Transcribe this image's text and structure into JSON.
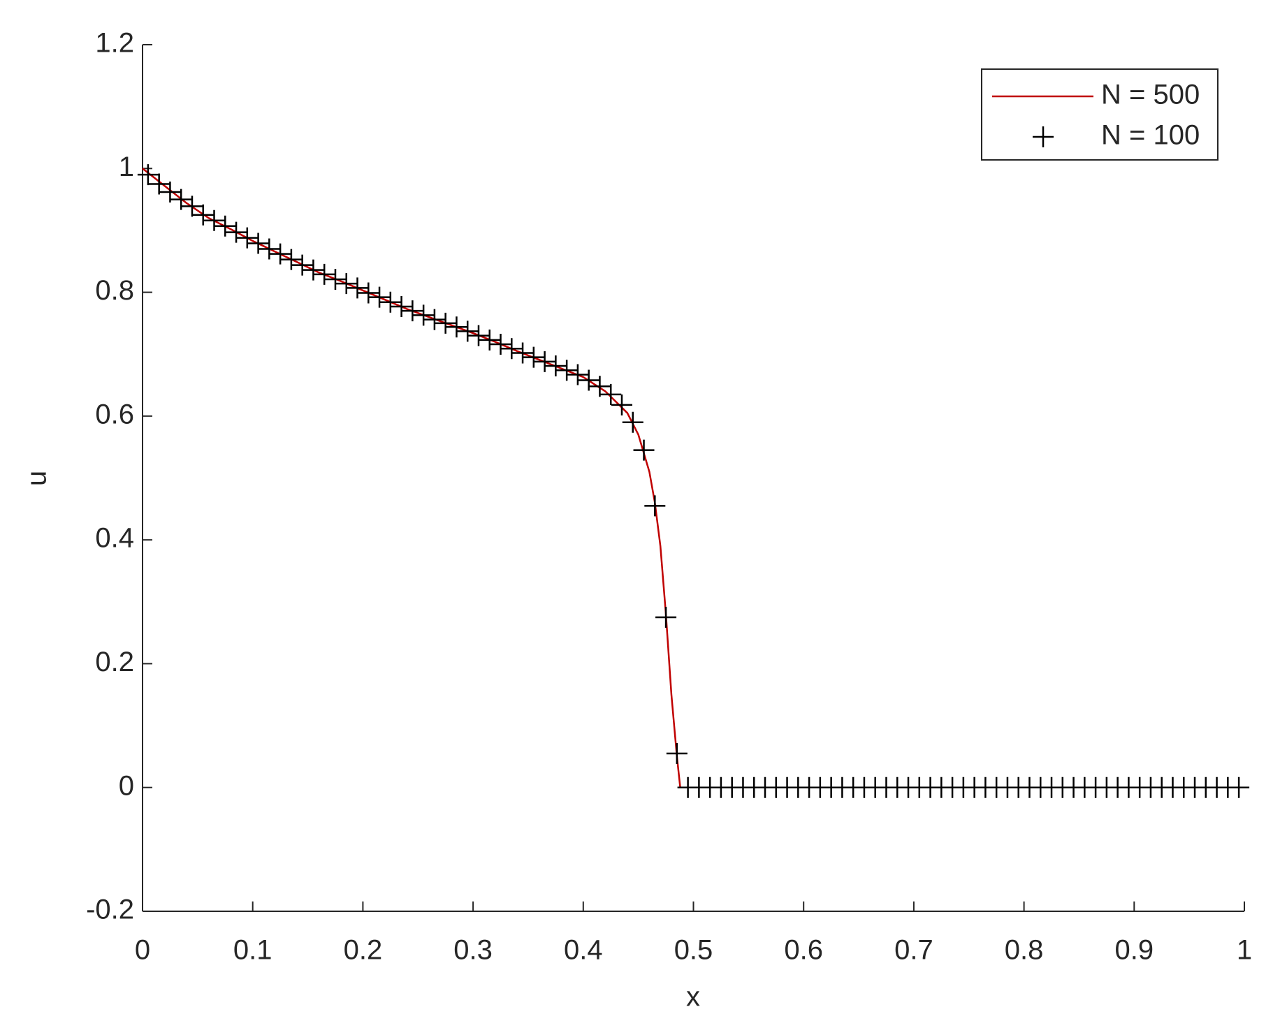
{
  "chart_data": {
    "type": "line",
    "xlabel": "x",
    "ylabel": "u",
    "xlim": [
      0,
      1
    ],
    "xticks": [
      0,
      0.1,
      0.2,
      0.3,
      0.4,
      0.5,
      0.6,
      0.7,
      0.8,
      0.9,
      1
    ],
    "ylim": [
      -0.2,
      1.2
    ],
    "yticks": [
      -0.2,
      0,
      0.2,
      0.4,
      0.6,
      0.8,
      1,
      1.2
    ],
    "legend": "top-right",
    "series": [
      {
        "name": "N = 500",
        "color": "#c00000",
        "style": "line",
        "x": [
          0,
          0.02,
          0.04,
          0.06,
          0.08,
          0.1,
          0.12,
          0.14,
          0.16,
          0.18,
          0.2,
          0.22,
          0.24,
          0.26,
          0.28,
          0.3,
          0.32,
          0.34,
          0.36,
          0.38,
          0.4,
          0.42,
          0.44,
          0.45,
          0.46,
          0.465,
          0.47,
          0.475,
          0.48,
          0.485,
          0.488,
          1
        ],
        "values": [
          1,
          0.972,
          0.944,
          0.92,
          0.902,
          0.883,
          0.866,
          0.849,
          0.832,
          0.818,
          0.803,
          0.788,
          0.773,
          0.76,
          0.747,
          0.734,
          0.72,
          0.705,
          0.691,
          0.677,
          0.663,
          0.64,
          0.605,
          0.57,
          0.51,
          0.46,
          0.39,
          0.28,
          0.15,
          0.05,
          0,
          0
        ]
      },
      {
        "name": "N = 100",
        "color": "#000000",
        "style": "plus",
        "x": [
          0.005,
          0.015,
          0.025,
          0.035,
          0.045,
          0.055,
          0.065,
          0.075,
          0.085,
          0.095,
          0.105,
          0.115,
          0.125,
          0.135,
          0.145,
          0.155,
          0.165,
          0.175,
          0.185,
          0.195,
          0.205,
          0.215,
          0.225,
          0.235,
          0.245,
          0.255,
          0.265,
          0.275,
          0.285,
          0.295,
          0.305,
          0.315,
          0.325,
          0.335,
          0.345,
          0.355,
          0.365,
          0.375,
          0.385,
          0.395,
          0.405,
          0.415,
          0.425,
          0.435,
          0.445,
          0.455,
          0.465,
          0.475,
          0.485,
          0.495,
          0.505,
          0.515,
          0.525,
          0.535,
          0.545,
          0.555,
          0.565,
          0.575,
          0.585,
          0.595,
          0.605,
          0.615,
          0.625,
          0.635,
          0.645,
          0.655,
          0.665,
          0.675,
          0.685,
          0.695,
          0.705,
          0.715,
          0.725,
          0.735,
          0.745,
          0.755,
          0.765,
          0.775,
          0.785,
          0.795,
          0.805,
          0.815,
          0.825,
          0.835,
          0.845,
          0.855,
          0.865,
          0.875,
          0.885,
          0.895,
          0.905,
          0.915,
          0.925,
          0.935,
          0.945,
          0.955,
          0.965,
          0.975,
          0.985,
          0.995
        ],
        "values": [
          0.99,
          0.975,
          0.962,
          0.95,
          0.939,
          0.925,
          0.916,
          0.907,
          0.897,
          0.888,
          0.879,
          0.87,
          0.862,
          0.853,
          0.844,
          0.836,
          0.829,
          0.821,
          0.814,
          0.807,
          0.799,
          0.792,
          0.784,
          0.777,
          0.77,
          0.763,
          0.756,
          0.75,
          0.744,
          0.737,
          0.73,
          0.723,
          0.716,
          0.709,
          0.702,
          0.695,
          0.688,
          0.681,
          0.674,
          0.667,
          0.658,
          0.648,
          0.635,
          0.618,
          0.59,
          0.545,
          0.455,
          0.275,
          0.055,
          0,
          0,
          0,
          0,
          0,
          0,
          0,
          0,
          0,
          0,
          0,
          0,
          0,
          0,
          0,
          0,
          0,
          0,
          0,
          0,
          0,
          0,
          0,
          0,
          0,
          0,
          0,
          0,
          0,
          0,
          0,
          0,
          0,
          0,
          0,
          0,
          0,
          0,
          0,
          0,
          0,
          0,
          0,
          0,
          0,
          0,
          0,
          0,
          0,
          0,
          0
        ]
      }
    ]
  }
}
